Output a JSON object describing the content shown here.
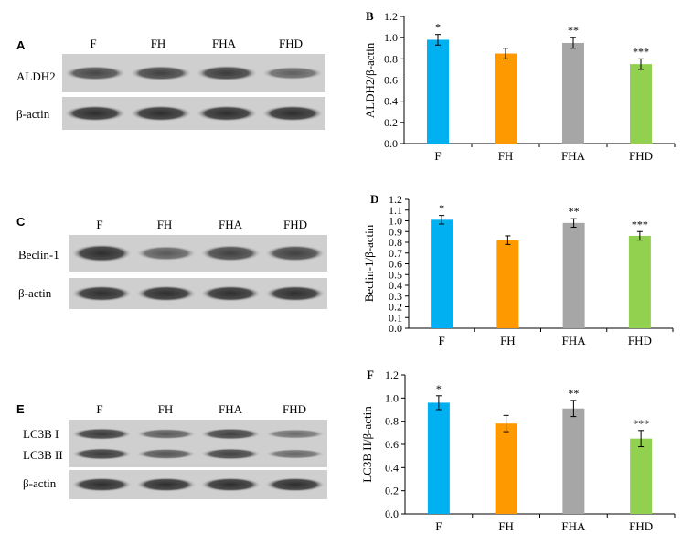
{
  "panels": {
    "A": {
      "letter": "A",
      "lanes": [
        "F",
        "FH",
        "FHA",
        "FHD"
      ],
      "rows": [
        {
          "label": "ALDH2",
          "intensity": [
            0.75,
            0.8,
            0.85,
            0.55
          ]
        },
        {
          "label": "β-actin",
          "intensity": [
            0.95,
            0.95,
            0.95,
            0.95
          ]
        }
      ]
    },
    "C": {
      "letter": "C",
      "lanes": [
        "F",
        "FH",
        "FHA",
        "FHD"
      ],
      "rows": [
        {
          "label": "Beclin-1",
          "intensity": [
            0.95,
            0.6,
            0.8,
            0.8
          ]
        },
        {
          "label": "β-actin",
          "intensity": [
            0.95,
            0.95,
            0.95,
            0.95
          ]
        }
      ]
    },
    "E": {
      "letter": "E",
      "lanes": [
        "F",
        "FH",
        "FHA",
        "FHD"
      ],
      "rows": [
        {
          "label": "LC3B I",
          "intensity": [
            0.85,
            0.6,
            0.8,
            0.45
          ]
        },
        {
          "label": "LC3B II",
          "intensity": [
            0.85,
            0.65,
            0.8,
            0.5
          ]
        },
        {
          "label": "β-actin",
          "intensity": [
            0.95,
            0.95,
            0.95,
            0.95
          ]
        }
      ]
    }
  },
  "chart_data": [
    {
      "panel": "B",
      "type": "bar",
      "categories": [
        "F",
        "FH",
        "FHA",
        "FHD"
      ],
      "values": [
        0.98,
        0.85,
        0.95,
        0.75
      ],
      "errors": [
        0.05,
        0.05,
        0.05,
        0.05
      ],
      "significance": [
        "*",
        "",
        "**",
        "***"
      ],
      "colors": [
        "#00b0f0",
        "#ff9900",
        "#a6a6a6",
        "#92d050"
      ],
      "ylabel": "ALDH2/β-actin",
      "ylim": [
        0,
        1.2
      ],
      "yticks": [
        "0.0",
        "0.2",
        "0.4",
        "0.6",
        "0.8",
        "1.0",
        "1.2"
      ],
      "grid": false
    },
    {
      "panel": "D",
      "type": "bar",
      "categories": [
        "F",
        "FH",
        "FHA",
        "FHD"
      ],
      "values": [
        1.01,
        0.82,
        0.98,
        0.86
      ],
      "errors": [
        0.04,
        0.04,
        0.04,
        0.04
      ],
      "significance": [
        "*",
        "",
        "**",
        "***"
      ],
      "colors": [
        "#00b0f0",
        "#ff9900",
        "#a6a6a6",
        "#92d050"
      ],
      "ylabel": "Beclin-1/β-actin",
      "ylim": [
        0,
        1.2
      ],
      "yticks": [
        "0.0",
        "0.1",
        "0.2",
        "0.3",
        "0.4",
        "0.5",
        "0.6",
        "0.7",
        "0.8",
        "0.9",
        "1.0",
        "1.1",
        "1.2"
      ],
      "grid": false
    },
    {
      "panel": "F",
      "type": "bar",
      "categories": [
        "F",
        "FH",
        "FHA",
        "FHD"
      ],
      "values": [
        0.96,
        0.78,
        0.91,
        0.65
      ],
      "errors": [
        0.06,
        0.07,
        0.07,
        0.07
      ],
      "significance": [
        "*",
        "",
        "**",
        "***"
      ],
      "colors": [
        "#00b0f0",
        "#ff9900",
        "#a6a6a6",
        "#92d050"
      ],
      "ylabel": "LC3B II/β-actin",
      "ylim": [
        0,
        1.2
      ],
      "yticks": [
        "0.0",
        "0.2",
        "0.4",
        "0.6",
        "0.8",
        "1.0",
        "1.2"
      ],
      "grid": false
    }
  ]
}
